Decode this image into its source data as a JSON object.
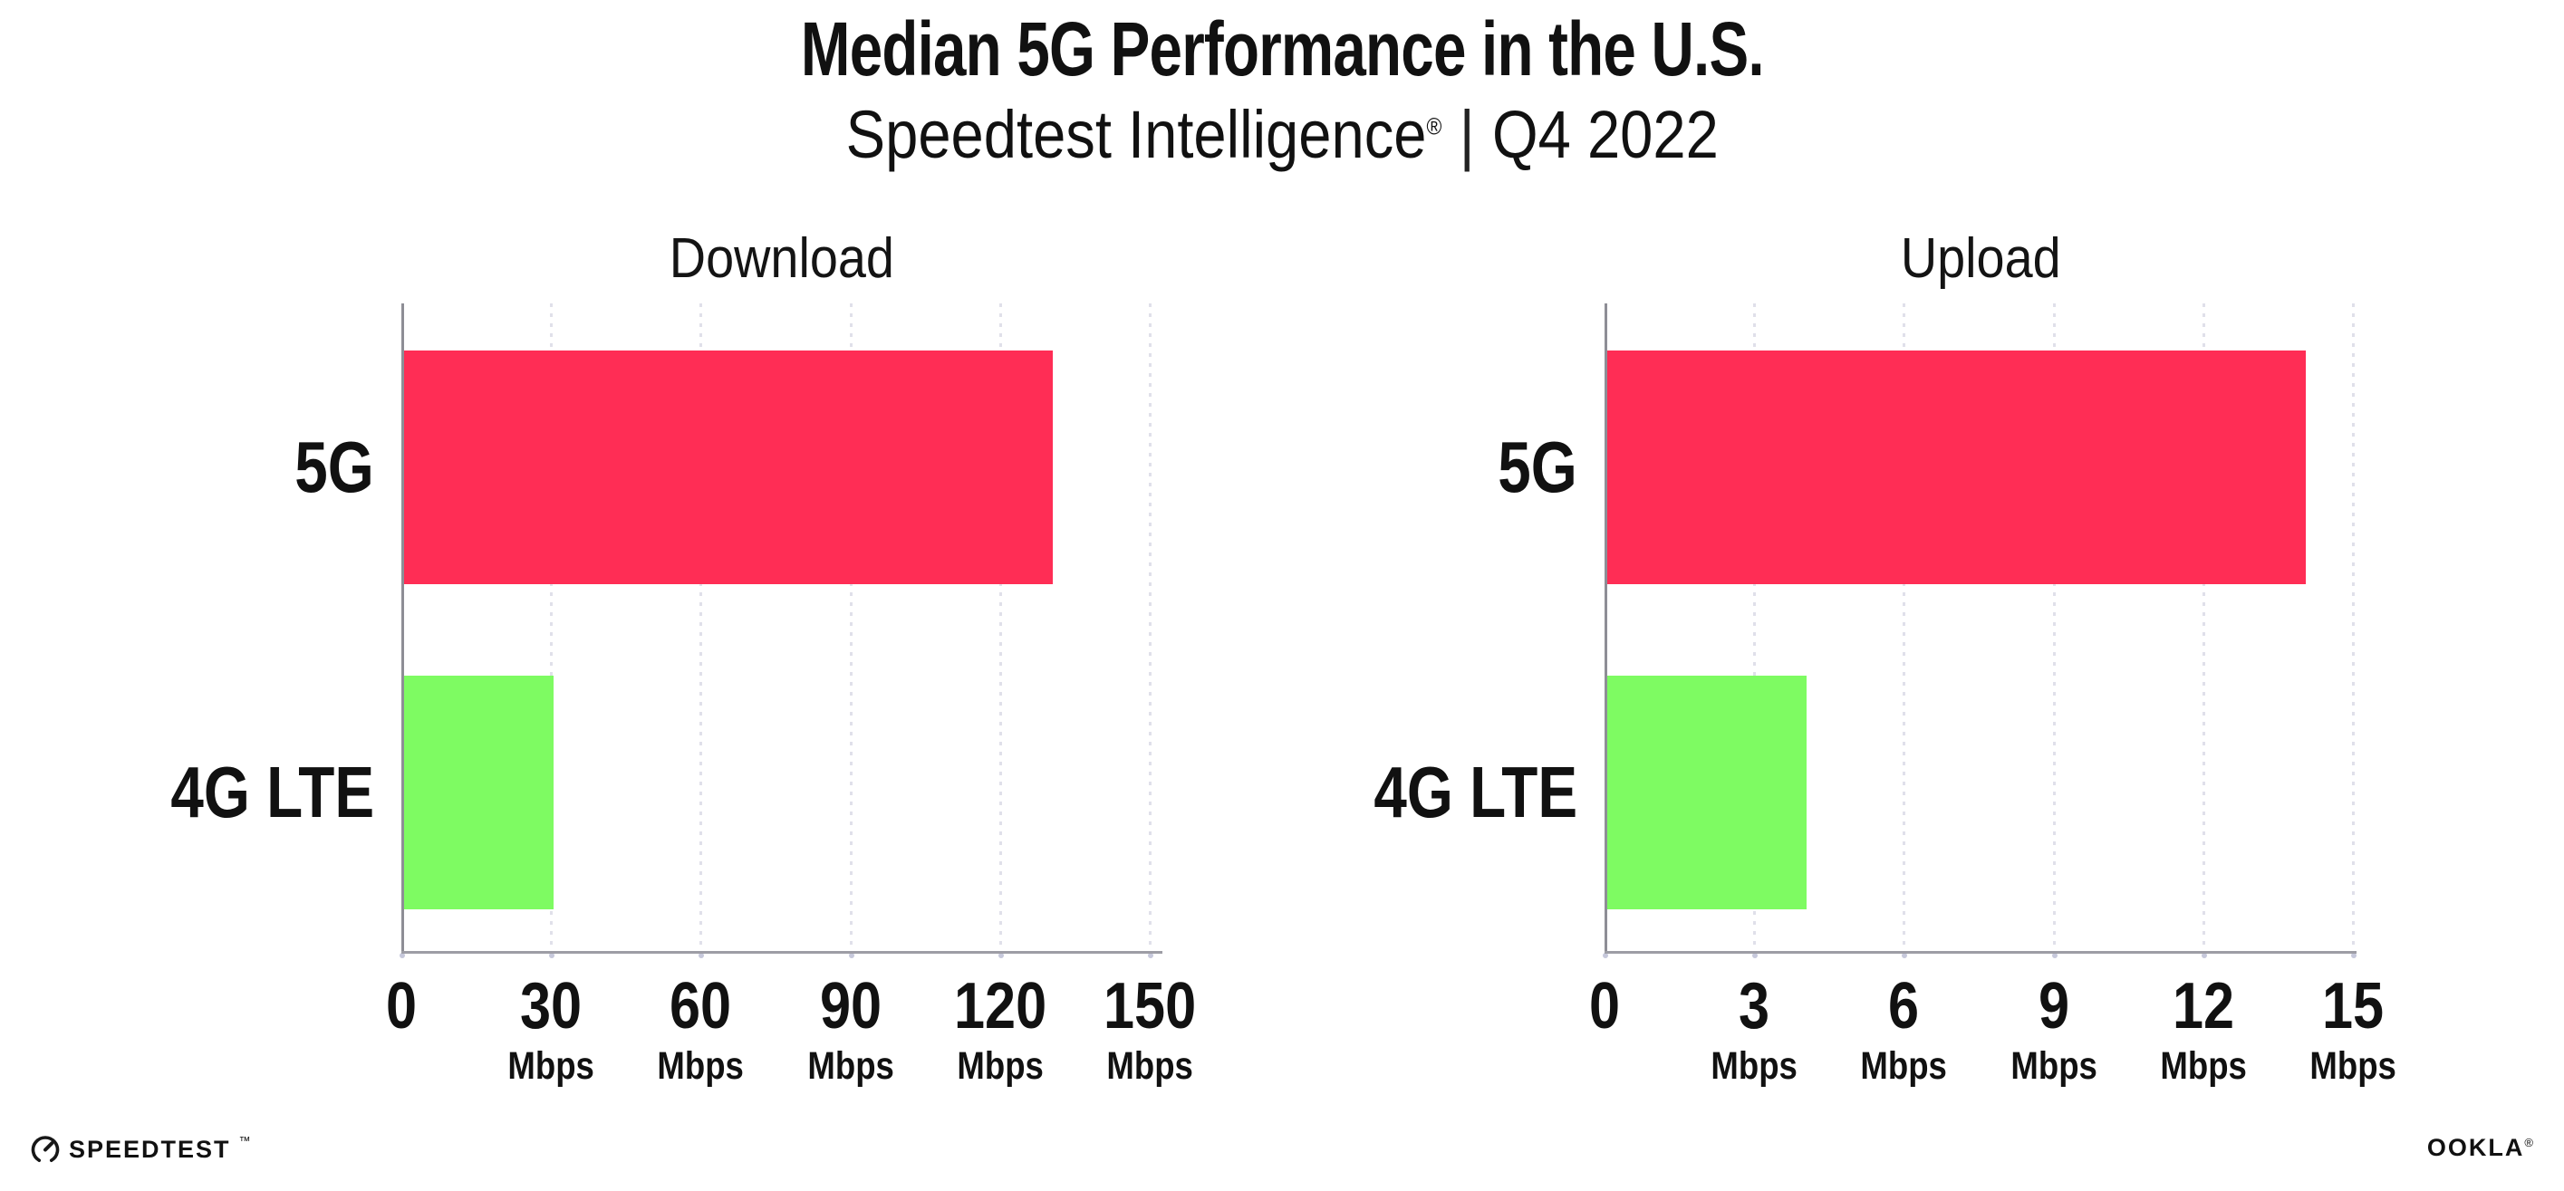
{
  "header": {
    "title": "Median 5G Performance in the U.S.",
    "subtitle_brand": "Speedtest Intelligence",
    "subtitle_trademark": "®",
    "subtitle_separator": "|",
    "subtitle_period": "Q4 2022"
  },
  "chart_data": [
    {
      "type": "bar",
      "orientation": "horizontal",
      "title": "Download",
      "categories": [
        "5G",
        "4G LTE"
      ],
      "values": [
        130,
        30
      ],
      "unit": "Mbps",
      "xlim": [
        0,
        150
      ],
      "xticks": [
        0,
        30,
        60,
        90,
        120,
        150
      ],
      "grid": "vertical-dotted",
      "legend": "none",
      "bar_colors": [
        "#FF2D55",
        "#7EFB62"
      ]
    },
    {
      "type": "bar",
      "orientation": "horizontal",
      "title": "Upload",
      "categories": [
        "5G",
        "4G LTE"
      ],
      "values": [
        14,
        4
      ],
      "unit": "Mbps",
      "xlim": [
        0,
        15
      ],
      "xticks": [
        0,
        3,
        6,
        9,
        12,
        15
      ],
      "grid": "vertical-dotted",
      "legend": "none",
      "bar_colors": [
        "#FF2D55",
        "#7EFB62"
      ]
    }
  ],
  "footer": {
    "speedtest_label": "SPEEDTEST",
    "speedtest_mark": "™",
    "ookla_label": "OOKLA",
    "ookla_mark": "®"
  },
  "colors": {
    "background": "#FFFFFF",
    "text": "#111111",
    "bar_5g": "#FF2D55",
    "bar_4g_lte": "#7EFB62",
    "gridline": "#E0E0EA",
    "axis_line": "#9D9DA5",
    "axis_spine": "#8E8E96",
    "tick_dot": "#C6C8DB"
  }
}
